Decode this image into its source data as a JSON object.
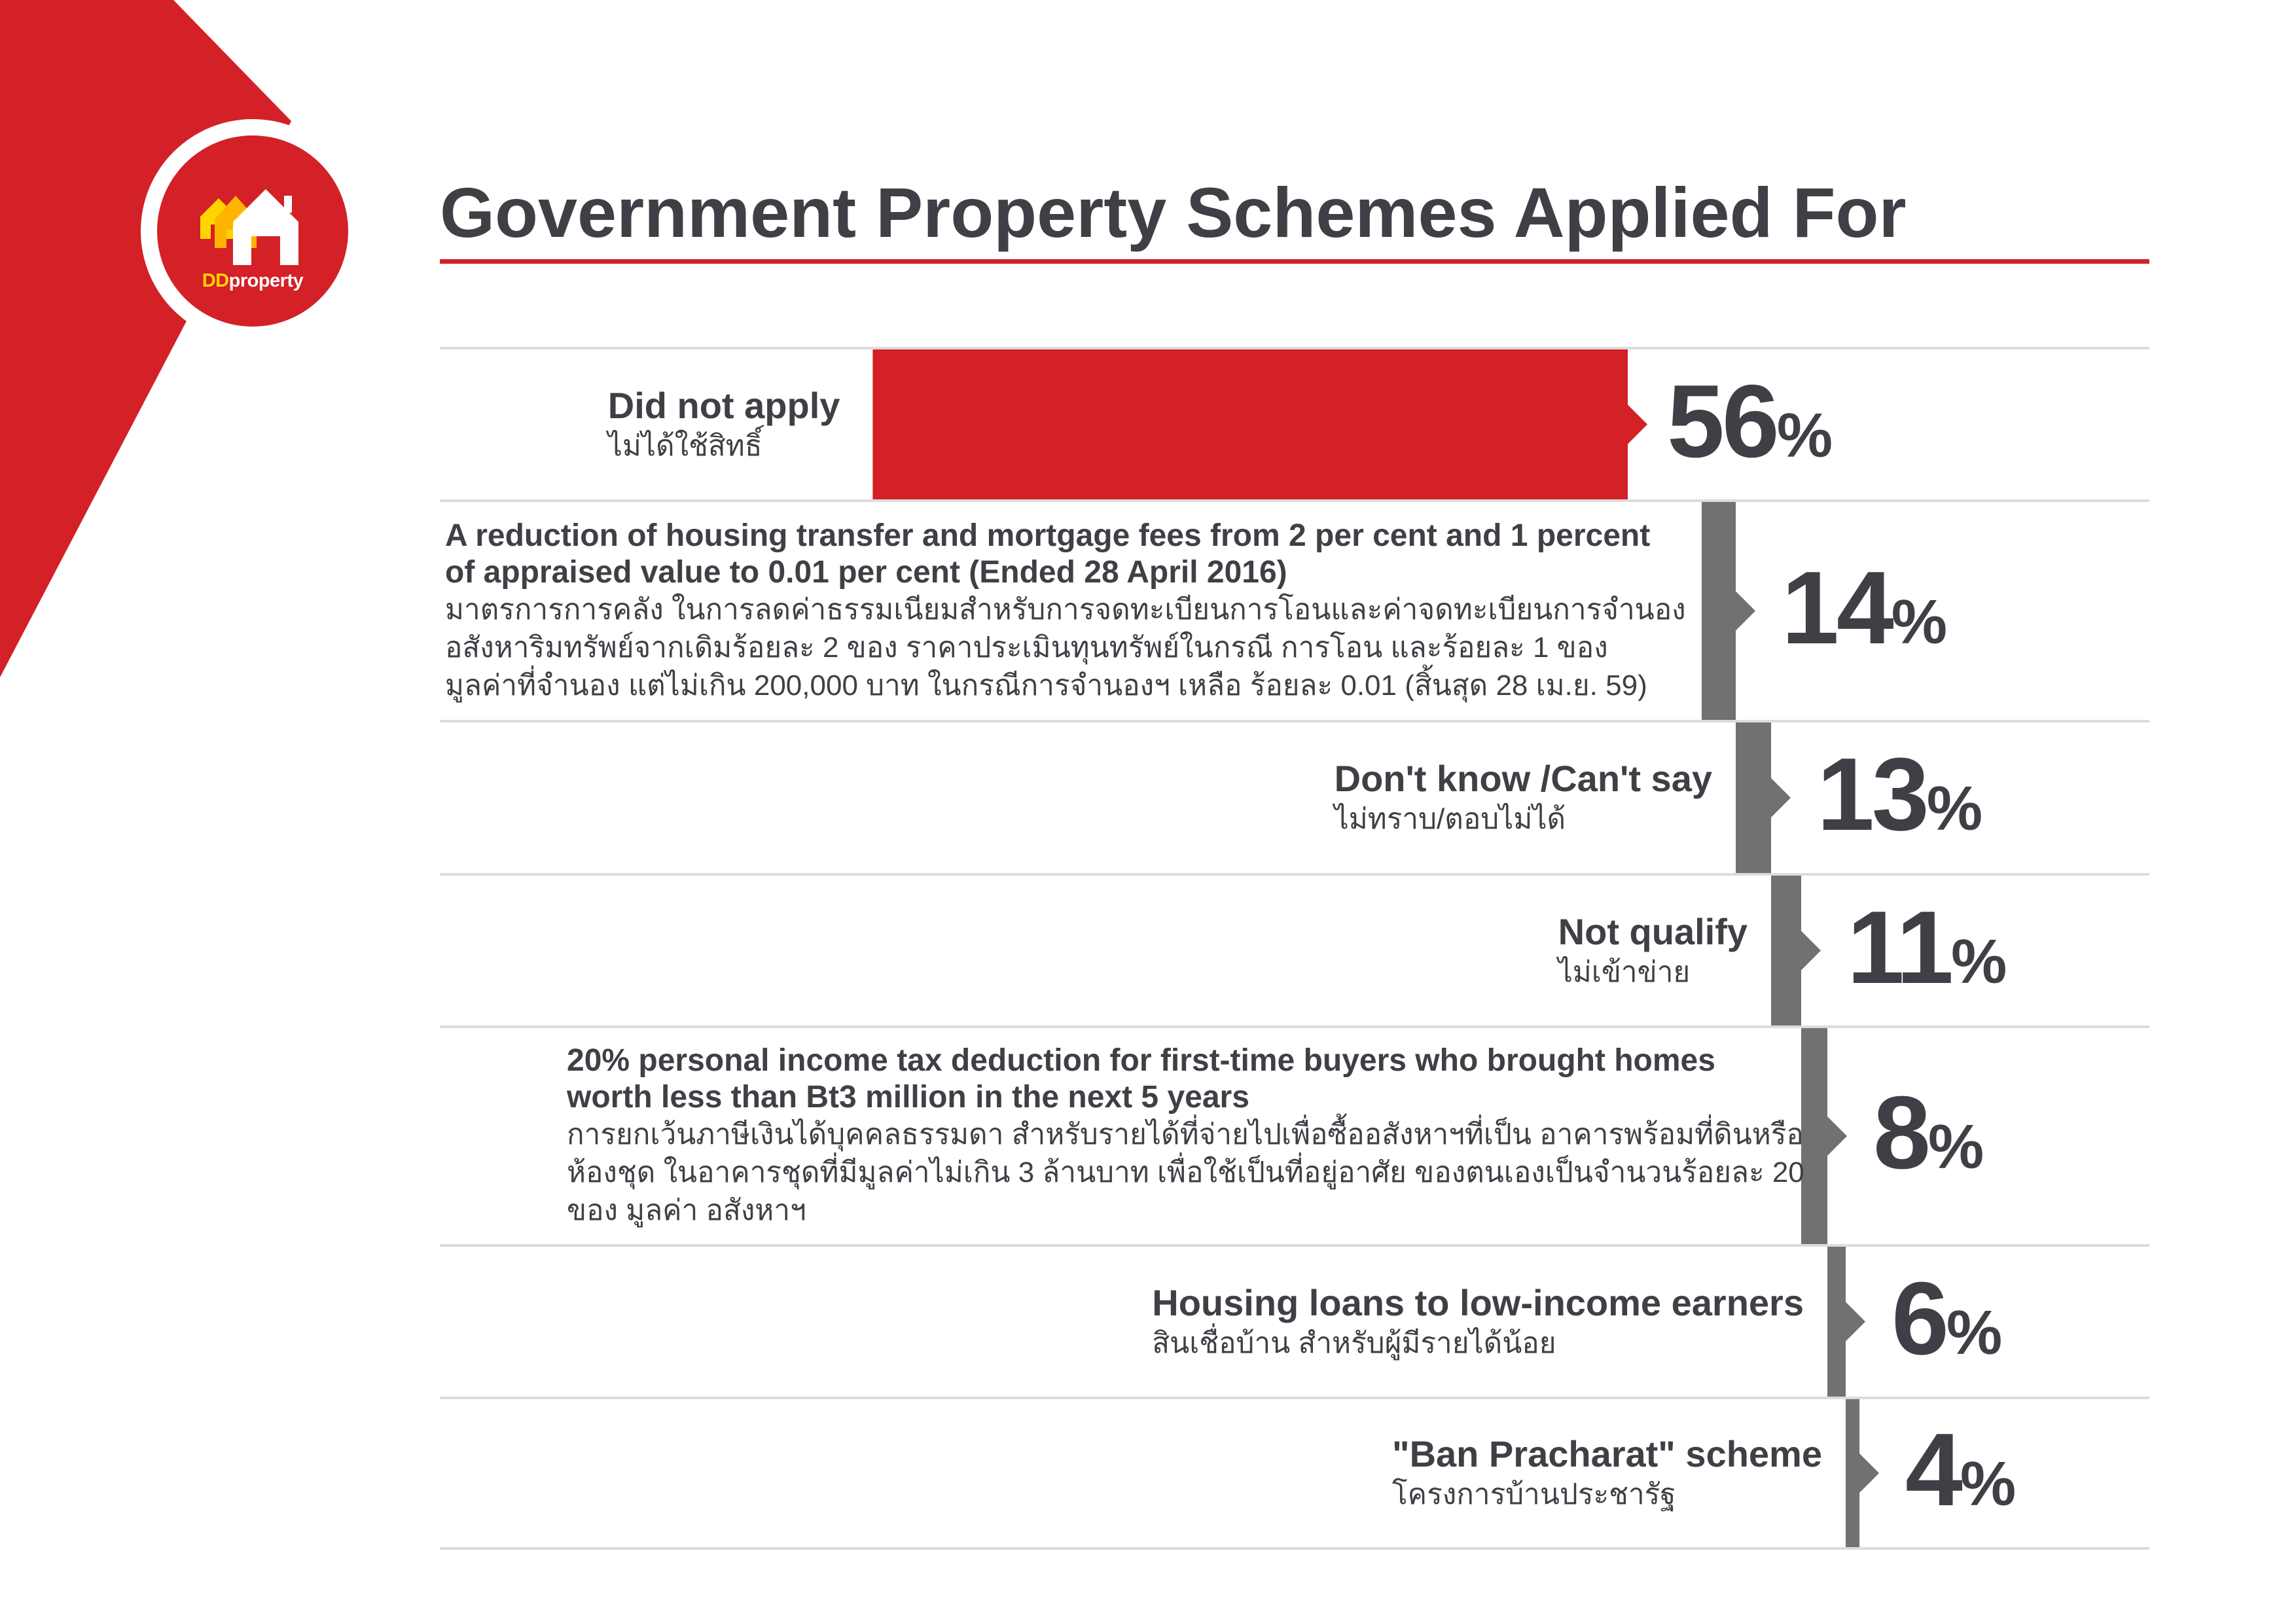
{
  "brand": {
    "logo_text_dd": "DD",
    "logo_text_rest": "property",
    "accent_color": "#d42027",
    "logo_yellow": "#ffd500"
  },
  "title": "Government Property Schemes Applied For",
  "chart_data": {
    "type": "bar",
    "title": "Government Property Schemes Applied For",
    "unit": "%",
    "highlight_color": "#d42027",
    "bar_color": "#707173",
    "categories": [
      "Did not apply",
      "A reduction of housing transfer and mortgage fees from 2 per cent and 1 percent of appraised value to 0.01 per cent (Ended 28 April 2016)",
      "Don't know /Can't say",
      "Not qualify",
      "20% personal income tax deduction for first-time buyers who brought homes worth less than Bt3 million in the next 5 years",
      "Housing loans to low-income earners",
      "\"Ban Pracharat\" scheme"
    ],
    "values": [
      56,
      14,
      13,
      11,
      8,
      6,
      4
    ],
    "rows": [
      {
        "label_en": [
          "Did not apply"
        ],
        "label_th": [
          "ไม่ได้ใช้สิทธิ์"
        ],
        "value": 56,
        "value_label": "56",
        "highlight": true
      },
      {
        "label_en": [
          "A reduction of housing transfer and mortgage fees from 2 per cent and 1 percent",
          "of appraised value to 0.01 per cent (Ended 28 April 2016)"
        ],
        "label_th": [
          "มาตรการการคลัง ในการลดค่าธรรมเนียมสำหรับการจดทะเบียนการโอนและค่าจดทะเบียนการจำนอง",
          "อสังหาริมทรัพย์จากเดิมร้อยละ 2 ของ ราคาประเมินทุนทรัพย์ในกรณี การโอน และร้อยละ 1 ของ",
          "มูลค่าที่จำนอง แต่ไม่เกิน 200,000 บาท ในกรณีการจำนองฯ เหลือ ร้อยละ 0.01 (สิ้นสุด 28 เม.ย. 59)"
        ],
        "value": 14,
        "value_label": "14",
        "highlight": false
      },
      {
        "label_en": [
          "Don't know /Can't say"
        ],
        "label_th": [
          "ไม่ทราบ/ตอบไม่ได้"
        ],
        "value": 13,
        "value_label": "13",
        "highlight": false
      },
      {
        "label_en": [
          "Not qualify"
        ],
        "label_th": [
          "ไม่เข้าข่าย"
        ],
        "value": 11,
        "value_label": "11",
        "highlight": false
      },
      {
        "label_en": [
          "20% personal income tax deduction for first-time buyers who brought homes",
          "worth less than Bt3 million in the next 5 years"
        ],
        "label_th": [
          "การยกเว้นภาษีเงินได้บุคคลธรรมดา สำหรับรายได้ที่จ่ายไปเพื่อซื้ออสังหาฯที่เป็น อาคารพร้อมที่ดินหรือ",
          "ห้องชุด ในอาคารชุดที่มีมูลค่าไม่เกิน 3 ล้านบาท เพื่อใช้เป็นที่อยู่อาศัย ของตนเองเป็นจำนวนร้อยละ 20",
          "ของ มูลค่า อสังหาฯ"
        ],
        "value": 8,
        "value_label": "8",
        "highlight": false
      },
      {
        "label_en": [
          "Housing loans to low-income earners"
        ],
        "label_th": [
          "สินเชื่อบ้าน สำหรับผู้มีรายได้น้อย"
        ],
        "value": 6,
        "value_label": "6",
        "highlight": false
      },
      {
        "label_en": [
          "\"Ban Pracharat\" scheme"
        ],
        "label_th": [
          "โครงการบ้านประชารัฐ"
        ],
        "value": 4,
        "value_label": "4",
        "highlight": false
      }
    ],
    "percent_sign": "%"
  }
}
